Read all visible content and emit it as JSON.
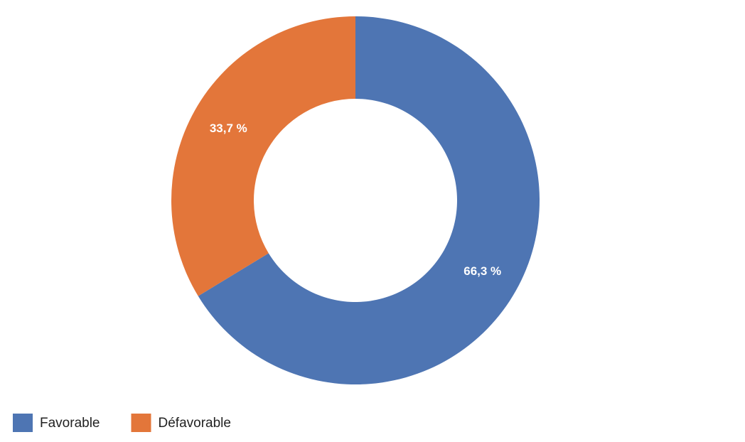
{
  "chart_data": {
    "type": "donut",
    "categories": [
      "Favorable",
      "Défavorable"
    ],
    "values": [
      66.3,
      33.7
    ],
    "value_labels": [
      "66,3 %",
      "33,7 %"
    ],
    "colors": [
      "#4e75b3",
      "#e3763a"
    ],
    "legend": "bottom-left"
  }
}
